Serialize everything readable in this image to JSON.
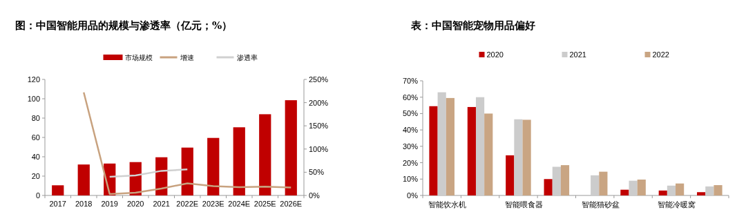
{
  "chart_data": [
    {
      "type": "bar",
      "title": "图：中国智能用品的规模与渗透率（亿元；%）",
      "categories": [
        "2017",
        "2018",
        "2019",
        "2020",
        "2021",
        "2022E",
        "2023E",
        "2024E",
        "2025E",
        "2026E"
      ],
      "series": [
        {
          "name": "市场规模",
          "color": "#c00000",
          "values": [
            10.5,
            32,
            33,
            34.5,
            39.5,
            49.5,
            59.5,
            70.5,
            84,
            98.5
          ]
        },
        {
          "name": "增速",
          "type": "line",
          "axis": "y2",
          "color": "#c8a27f",
          "values": [
            null,
            222,
            3,
            6,
            15,
            26,
            20,
            18,
            19,
            17
          ]
        },
        {
          "name": "渗透率",
          "type": "line",
          "axis": "y2",
          "color": "#d0d0d0",
          "values": [
            null,
            null,
            40,
            43,
            53,
            56,
            null,
            null,
            null,
            null
          ]
        }
      ],
      "ylim": [
        0,
        120
      ],
      "yticks": [
        0,
        20,
        40,
        60,
        80,
        100,
        120
      ],
      "y2lim": [
        0,
        250
      ],
      "y2ticks": [
        {
          "value": 0,
          "label": "0%"
        },
        {
          "value": 50,
          "label": "50%"
        },
        {
          "value": 100,
          "label": "100%"
        },
        {
          "value": 150,
          "label": "150%"
        },
        {
          "value": 200,
          "label": "200%"
        },
        {
          "value": 250,
          "label": "250%"
        }
      ],
      "legend": "top",
      "marker": "none"
    },
    {
      "type": "bar",
      "title": "表：中国智能宠物用品偏好",
      "categories": [
        "智能饮水机",
        null,
        "智能喂食器",
        null,
        "智能猫砂盆",
        null,
        "智能冷暖窝",
        null
      ],
      "series": [
        {
          "name": "2020",
          "color": "#c00000",
          "values": [
            54.5,
            54,
            24.5,
            10,
            null,
            3.5,
            3,
            2
          ]
        },
        {
          "name": "2021",
          "color": "#cccccc",
          "values": [
            63,
            60,
            46.5,
            17.5,
            12.3,
            9,
            6,
            5.5
          ]
        },
        {
          "name": "2022",
          "color": "#c9a583",
          "values": [
            59.5,
            50,
            46.2,
            18.5,
            14.5,
            9.7,
            7.3,
            6.3
          ]
        }
      ],
      "ylim": [
        0,
        70
      ],
      "yticks": [
        {
          "value": 0,
          "label": "0%"
        },
        {
          "value": 10,
          "label": "10%"
        },
        {
          "value": 20,
          "label": "20%"
        },
        {
          "value": 30,
          "label": "30%"
        },
        {
          "value": 40,
          "label": "40%"
        },
        {
          "value": 50,
          "label": "50%"
        },
        {
          "value": 60,
          "label": "60%"
        },
        {
          "value": 70,
          "label": "70%"
        }
      ],
      "legend": "top"
    }
  ]
}
